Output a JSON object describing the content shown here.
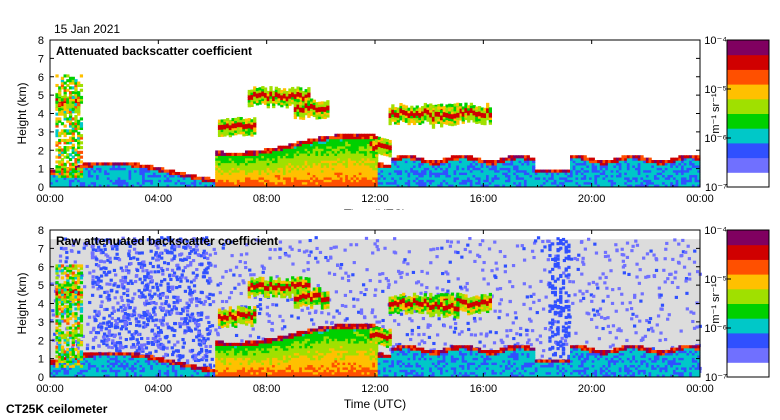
{
  "header": {
    "date": "15 Jan 2021"
  },
  "footer": {
    "instrument": "CT25K ceilometer"
  },
  "colors": {
    "background_no_signal": "#dcdcdc",
    "colormap": [
      "#ffffff",
      "#7070ff",
      "#3050ff",
      "#00c8c8",
      "#00d000",
      "#a0e000",
      "#ffc000",
      "#ff5000",
      "#d00000",
      "#800060"
    ]
  },
  "chart_data": [
    {
      "type": "heatmap",
      "title": "Attenuated backscatter coefficient",
      "xlabel": "Time (UTC)",
      "ylabel": "Height (km)",
      "x_ticks": [
        "00:00",
        "04:00",
        "08:00",
        "12:00",
        "16:00",
        "20:00",
        "00:00"
      ],
      "y_ticks": [
        "0",
        "1",
        "2",
        "3",
        "4",
        "5",
        "6",
        "7",
        "8"
      ],
      "xlim_hours": [
        0,
        24
      ],
      "ylim_km": [
        0,
        8
      ],
      "colorbar": {
        "label": "m⁻¹ sr⁻¹",
        "scale": "log",
        "ticks": [
          "10⁻⁴",
          "10⁻⁵",
          "10⁻⁶",
          "10⁻⁷"
        ]
      },
      "features": [
        {
          "kind": "boundary_layer",
          "hour_start": 0,
          "hour_end": 24,
          "height_km": [
            0.3,
            1.5
          ]
        },
        {
          "kind": "cloud_layer",
          "hour_start": 7.3,
          "hour_end": 9.5,
          "height_km": 4.8
        },
        {
          "kind": "cloud_layer",
          "hour_start": 12.5,
          "hour_end": 16.2,
          "height_km": 3.9
        },
        {
          "kind": "cloud_layer",
          "hour_start": 13.0,
          "hour_end": 24,
          "height_km": 1.5
        }
      ]
    },
    {
      "type": "heatmap",
      "title": "Raw attenuated backscatter coefficient",
      "xlabel": "Time (UTC)",
      "ylabel": "Height (km)",
      "x_ticks": [
        "00:00",
        "04:00",
        "08:00",
        "12:00",
        "16:00",
        "20:00",
        "00:00"
      ],
      "y_ticks": [
        "0",
        "1",
        "2",
        "3",
        "4",
        "5",
        "6",
        "7",
        "8"
      ],
      "xlim_hours": [
        0,
        24
      ],
      "ylim_km": [
        0,
        8
      ],
      "colorbar": {
        "label": "m⁻¹ sr⁻¹",
        "scale": "log",
        "ticks": [
          "10⁻⁴",
          "10⁻⁵",
          "10⁻⁶",
          "10⁻⁷"
        ]
      },
      "features": [
        {
          "kind": "noise_background",
          "hour_start": 0,
          "hour_end": 24,
          "height_km": [
            0,
            7.5
          ]
        },
        {
          "kind": "dense_noise",
          "hour_start": 1.5,
          "hour_end": 5.8,
          "height_km": [
            0,
            7.5
          ]
        },
        {
          "kind": "cloud_layer",
          "hour_start": 12.5,
          "hour_end": 16.2,
          "height_km": 3.9
        }
      ]
    }
  ]
}
